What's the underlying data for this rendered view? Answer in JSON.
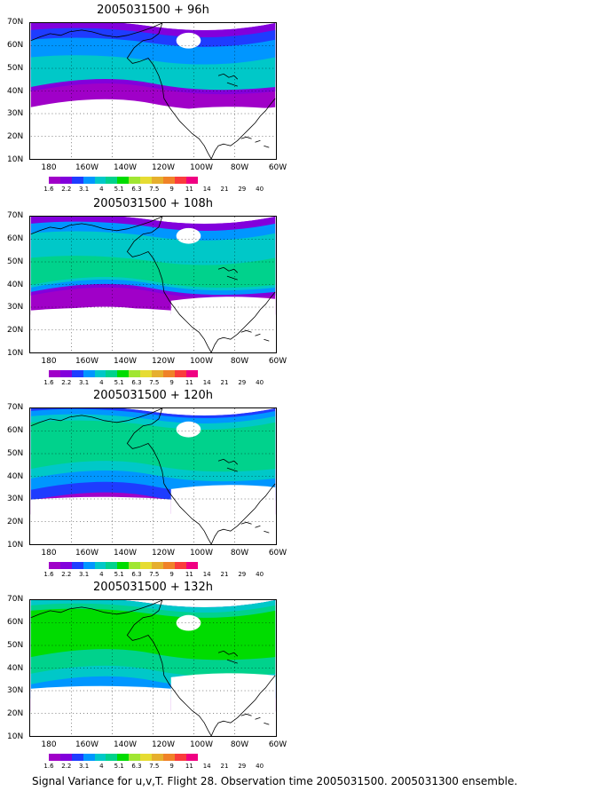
{
  "panels": [
    {
      "title": "2005031500 + 96h"
    },
    {
      "title": "2005031500 + 108h"
    },
    {
      "title": "2005031500 + 120h"
    },
    {
      "title": "2005031500 + 132h"
    }
  ],
  "lat_labels": [
    "70N",
    "60N",
    "50N",
    "40N",
    "30N",
    "20N",
    "10N"
  ],
  "lon_labels": [
    "180",
    "160W",
    "140W",
    "120W",
    "100W",
    "80W",
    "60W"
  ],
  "colorbar": {
    "labels": [
      "1.6",
      "2.2",
      "3.1",
      "4",
      "5.1",
      "6.3",
      "7.5",
      "9",
      "11",
      "14",
      "21",
      "29",
      "40"
    ],
    "colors": [
      "#a000c8",
      "#8200dc",
      "#1e3cff",
      "#0096ff",
      "#00c8c8",
      "#00d28c",
      "#00dc00",
      "#a0e632",
      "#e6dc32",
      "#e6af2d",
      "#f08228",
      "#fa3c3c",
      "#f00082"
    ]
  },
  "footer": "Signal Variance for u,v,T. Flight 28. Observation time 2005031500. 2005031300 ensemble."
}
